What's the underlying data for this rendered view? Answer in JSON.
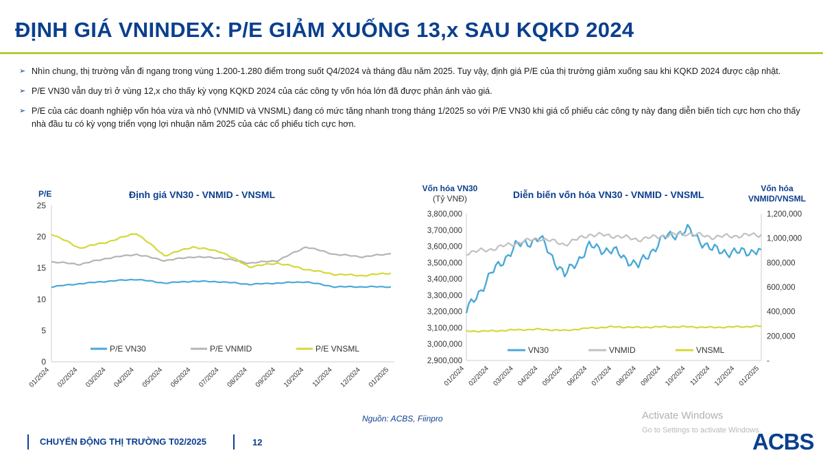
{
  "header": {
    "title": "ĐỊNH GIÁ VNINDEX: P/E GIẢM XUỐNG 13,x SAU KQKD 2024"
  },
  "bullets": [
    "Nhìn chung, thị trường vẫn đi ngang trong vùng 1.200-1.280 điểm trong suốt Q4/2024 và tháng đầu năm 2025. Tuy vậy, định giá P/E của thị trường giảm xuống sau khi KQKD 2024 được cập nhật.",
    "P/E VN30 vẫn duy trì ở vùng 12,x cho thấy kỳ vọng KQKD 2024 của các công ty vốn hóa lớn đã được phản ánh vào giá.",
    "P/E của các doanh nghiệp vốn hóa vừa và nhỏ (VNMID và VNSML) đang có mức tăng nhanh trong tháng 1/2025 so với P/E VN30 khi giá cổ phiếu các công ty này đang diễn biến tích cực hơn cho thấy nhà đầu tu có kỳ vọng triển vọng lợi nhuận năm 2025 của các cổ phiếu tích cực hơn."
  ],
  "chart_data": [
    {
      "type": "line",
      "title": "Định giá VN30 - VNMID - VNSML",
      "ylabel": "P/E",
      "xlabel": "",
      "ylim": [
        0,
        25
      ],
      "yticks": [
        "0",
        "5",
        "10",
        "15",
        "20",
        "25"
      ],
      "x": [
        "01/2024",
        "02/2024",
        "03/2024",
        "04/2024",
        "05/2024",
        "06/2024",
        "07/2024",
        "08/2024",
        "09/2024",
        "10/2024",
        "11/2024",
        "12/2024",
        "01/2025"
      ],
      "legend": "bottom",
      "grid": false,
      "series": [
        {
          "name": "P/E VN30",
          "color": "#4aa8d8",
          "values": [
            12.0,
            12.5,
            12.9,
            13.2,
            12.6,
            12.9,
            12.8,
            12.4,
            12.6,
            12.8,
            12.0,
            12.0,
            12.0
          ]
        },
        {
          "name": "P/E VNMID",
          "color": "#b4b4b4",
          "values": [
            16.0,
            15.6,
            16.6,
            17.2,
            16.2,
            16.8,
            16.6,
            15.8,
            16.2,
            18.4,
            17.2,
            16.8,
            17.3
          ]
        },
        {
          "name": "P/E VNSML",
          "color": "#d4d838",
          "values": [
            20.5,
            18.2,
            19.2,
            20.6,
            17.0,
            18.4,
            17.6,
            15.2,
            15.8,
            14.8,
            14.0,
            13.8,
            14.2
          ]
        }
      ]
    },
    {
      "type": "line",
      "title": "Diễn biến vốn hóa VN30 - VNMID - VNSML",
      "ylabel_left": [
        "Vốn hóa VN30",
        "(Tỷ VNĐ)"
      ],
      "ylabel_right": [
        "Vốn hóa",
        "VNMID/VNSML"
      ],
      "ylim_left": [
        2900000,
        3800000
      ],
      "ylim_right": [
        0,
        1200000
      ],
      "yticks_left": [
        "2,900,000",
        "3,000,000",
        "3,100,000",
        "3,200,000",
        "3,300,000",
        "3,400,000",
        "3,500,000",
        "3,600,000",
        "3,700,000",
        "3,800,000"
      ],
      "yticks_right": [
        "-",
        "200,000",
        "400,000",
        "600,000",
        "800,000",
        "1,000,000",
        "1,200,000"
      ],
      "x": [
        "01/2024",
        "02/2024",
        "03/2024",
        "04/2024",
        "05/2024",
        "06/2024",
        "07/2024",
        "08/2024",
        "09/2024",
        "10/2024",
        "11/2024",
        "12/2024",
        "01/2025"
      ],
      "legend": "bottom",
      "grid": false,
      "series": [
        {
          "name": "VN30",
          "axis": "left",
          "color": "#4aa8d8",
          "values": [
            3200000,
            3430000,
            3600000,
            3650000,
            3420000,
            3600000,
            3570000,
            3480000,
            3650000,
            3700000,
            3580000,
            3560000,
            3580000
          ]
        },
        {
          "name": "VNMID",
          "axis": "right",
          "color": "#c0c0c0",
          "values": [
            880000,
            910000,
            960000,
            1000000,
            950000,
            1030000,
            1020000,
            990000,
            1020000,
            1040000,
            1010000,
            1020000,
            1030000
          ]
        },
        {
          "name": "VNSML",
          "axis": "right",
          "color": "#d4d838",
          "values": [
            240000,
            240000,
            250000,
            255000,
            245000,
            265000,
            275000,
            270000,
            275000,
            275000,
            270000,
            275000,
            280000
          ]
        }
      ]
    }
  ],
  "source": "Nguồn: ACBS, Fiinpro",
  "footer": {
    "text": "CHUYỂN ĐỘNG THỊ TRƯỜNG  T02/2025",
    "page": "12"
  },
  "watermark": {
    "line1": "Activate Windows",
    "line2": "Go to Settings to activate Windows."
  },
  "logo": "ACBS"
}
